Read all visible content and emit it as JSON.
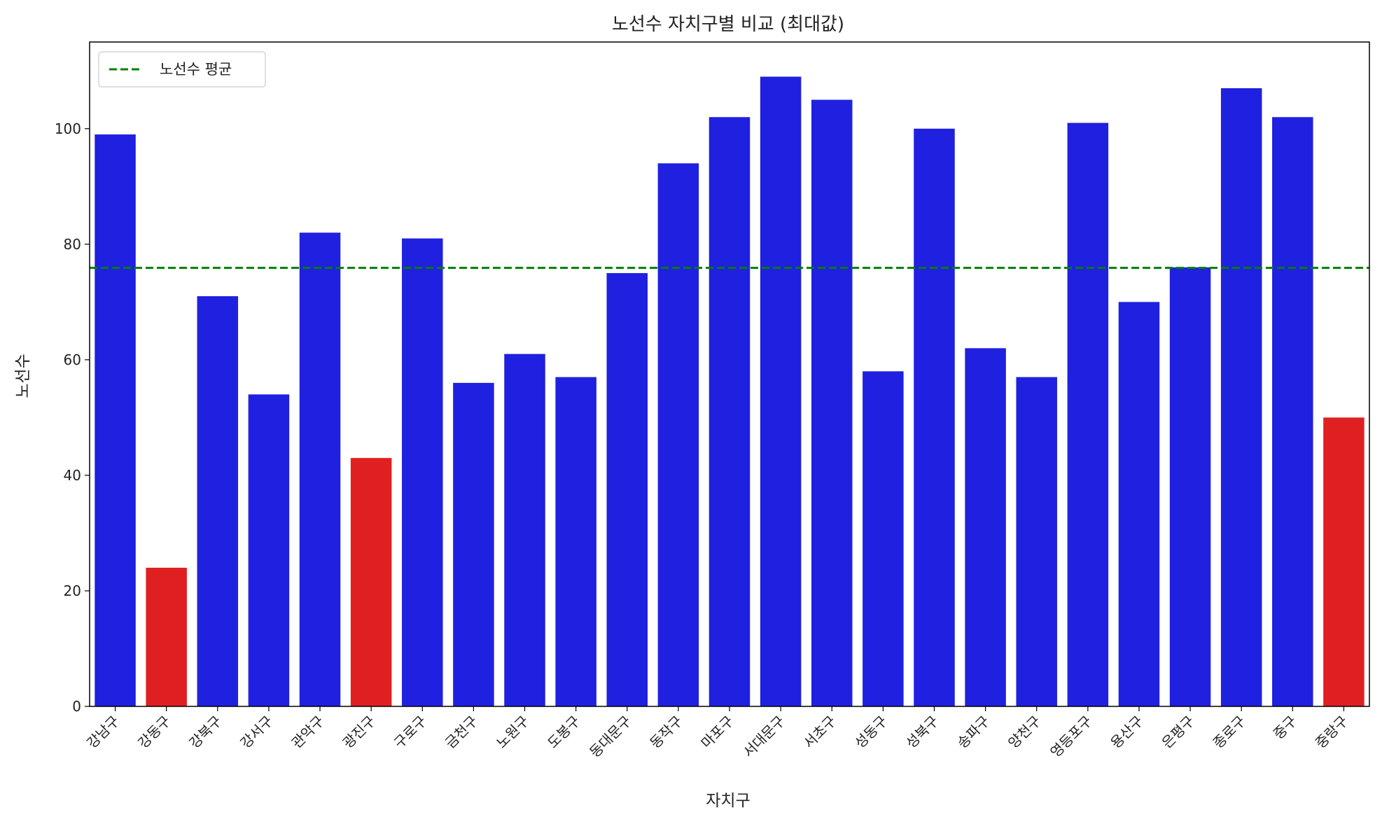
{
  "chart_data": {
    "type": "bar",
    "title": "노선수 자치구별 비교 (최대값)",
    "xlabel": "자치구",
    "ylabel": "노선수",
    "ylim": [
      0,
      115
    ],
    "yticks": [
      0,
      20,
      40,
      60,
      80,
      100
    ],
    "grid": false,
    "categories": [
      "강남구",
      "강동구",
      "강북구",
      "강서구",
      "관악구",
      "광진구",
      "구로구",
      "금천구",
      "노원구",
      "도봉구",
      "동대문구",
      "동작구",
      "마포구",
      "서대문구",
      "서초구",
      "성동구",
      "성북구",
      "송파구",
      "양천구",
      "영등포구",
      "용산구",
      "은평구",
      "종로구",
      "중구",
      "중랑구"
    ],
    "values": [
      99,
      24,
      71,
      54,
      82,
      43,
      81,
      56,
      61,
      57,
      75,
      94,
      102,
      109,
      105,
      58,
      100,
      62,
      57,
      101,
      70,
      76,
      107,
      102,
      50
    ],
    "highlighted": [
      "강동구",
      "광진구",
      "중랑구"
    ],
    "bar_color": "#2020e0",
    "highlight_color": "#e02020",
    "mean_line": {
      "value": 75.9,
      "label": "노선수 평균",
      "color": "#008000",
      "style": "dashed"
    },
    "legend": {
      "position": "top-left",
      "entries": [
        "노선수 평균"
      ]
    }
  }
}
